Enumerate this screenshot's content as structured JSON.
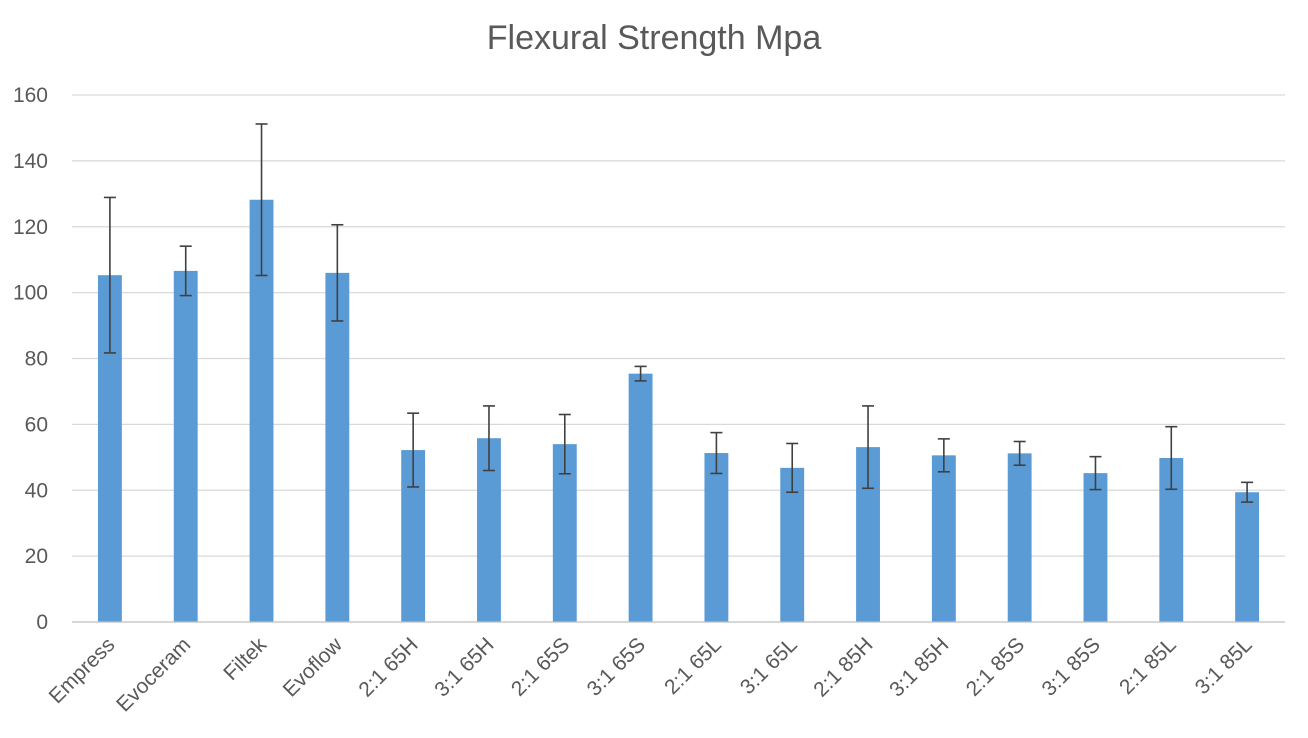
{
  "chart_data": {
    "type": "bar",
    "title": "Flexural Strength Mpa",
    "xlabel": "",
    "ylabel": "",
    "ylim": [
      0,
      160
    ],
    "yticks": [
      0,
      20,
      40,
      60,
      80,
      100,
      120,
      140,
      160
    ],
    "grid": true,
    "legend": "none",
    "bar_color": "#5b9bd5",
    "categories": [
      "Empress",
      "Evoceram",
      "Filtek",
      "Evoflow",
      "2:1 65H",
      "3:1 65H",
      "2:1 65S",
      "3:1 65S",
      "2:1 65L",
      "3:1 65L",
      "2:1 85H",
      "3:1 85H",
      "2:1 85S",
      "3:1 85S",
      "2:1 85L",
      "3:1 85L"
    ],
    "values": [
      105.3,
      106.6,
      128.2,
      106.0,
      52.2,
      55.8,
      54.0,
      75.4,
      51.3,
      46.8,
      53.1,
      50.6,
      51.2,
      45.2,
      49.8,
      39.4
    ],
    "error": [
      23.6,
      7.5,
      23.0,
      14.6,
      11.2,
      9.8,
      9.0,
      2.2,
      6.2,
      7.4,
      12.5,
      5.0,
      3.6,
      5.0,
      9.5,
      3.0
    ]
  }
}
